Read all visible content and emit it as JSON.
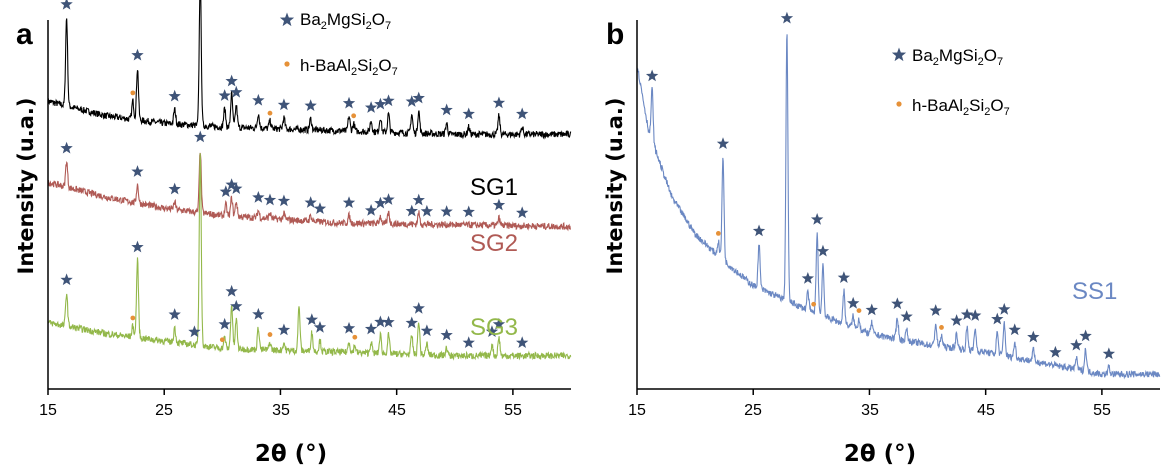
{
  "colors": {
    "star": "#3f5478",
    "dot": "#e69138",
    "axis": "#000000",
    "SG1": "#000000",
    "SG2": "#b05a55",
    "SG3": "#93b84a",
    "SS1": "#6b88c3"
  },
  "chart_data": [
    {
      "type": "line",
      "panel": "a",
      "xlabel": "2θ (°)",
      "ylabel": "Intensity (u.a.)",
      "xlim": [
        15,
        60
      ],
      "xticks": [
        15,
        25,
        35,
        45,
        55
      ],
      "legend": {
        "placement": "top-center",
        "entries": [
          {
            "marker": "star-icon",
            "label": "Ba₂MgSi₂O₇"
          },
          {
            "marker": "dot-icon",
            "label": "h-BaAl₂Si₂O₇"
          }
        ]
      },
      "series": [
        {
          "name": "SG1",
          "baseline": [
            [
              15,
              0.78
            ],
            [
              20,
              0.74
            ],
            [
              25,
              0.72
            ],
            [
              30,
              0.71
            ],
            [
              40,
              0.7
            ],
            [
              50,
              0.69
            ],
            [
              60,
              0.69
            ]
          ],
          "peaks": [
            {
              "x": 16.6,
              "h": 0.24
            },
            {
              "x": 22.3,
              "h": 0.05
            },
            {
              "x": 22.7,
              "h": 0.14
            },
            {
              "x": 25.9,
              "h": 0.04
            },
            {
              "x": 28.1,
              "h": 0.4
            },
            {
              "x": 30.2,
              "h": 0.05
            },
            {
              "x": 30.8,
              "h": 0.09
            },
            {
              "x": 31.2,
              "h": 0.06
            },
            {
              "x": 33.1,
              "h": 0.04
            },
            {
              "x": 34.1,
              "h": 0.02
            },
            {
              "x": 35.3,
              "h": 0.03
            },
            {
              "x": 37.6,
              "h": 0.03
            },
            {
              "x": 40.9,
              "h": 0.04
            },
            {
              "x": 41.3,
              "h": 0.02
            },
            {
              "x": 42.8,
              "h": 0.03
            },
            {
              "x": 43.6,
              "h": 0.04
            },
            {
              "x": 44.3,
              "h": 0.05
            },
            {
              "x": 46.3,
              "h": 0.05
            },
            {
              "x": 46.9,
              "h": 0.06
            },
            {
              "x": 49.3,
              "h": 0.03
            },
            {
              "x": 51.2,
              "h": 0.02
            },
            {
              "x": 53.8,
              "h": 0.05
            },
            {
              "x": 55.8,
              "h": 0.02
            }
          ],
          "stars": [
            16.6,
            22.7,
            25.9,
            28.1,
            30.2,
            30.8,
            31.2,
            33.1,
            35.3,
            37.6,
            40.9,
            42.8,
            43.6,
            44.3,
            46.3,
            46.9,
            49.3,
            51.2,
            53.8,
            55.8
          ],
          "dots": [
            22.3,
            34.1,
            41.3
          ]
        },
        {
          "name": "SG2",
          "baseline": [
            [
              15,
              0.56
            ],
            [
              20,
              0.52
            ],
            [
              25,
              0.49
            ],
            [
              30,
              0.47
            ],
            [
              40,
              0.45
            ],
            [
              50,
              0.445
            ],
            [
              60,
              0.44
            ]
          ],
          "peaks": [
            {
              "x": 16.6,
              "h": 0.07
            },
            {
              "x": 22.7,
              "h": 0.05
            },
            {
              "x": 25.9,
              "h": 0.02
            },
            {
              "x": 28.1,
              "h": 0.17
            },
            {
              "x": 30.3,
              "h": 0.03
            },
            {
              "x": 30.8,
              "h": 0.05
            },
            {
              "x": 31.2,
              "h": 0.04
            },
            {
              "x": 33.1,
              "h": 0.02
            },
            {
              "x": 34.1,
              "h": 0.015
            },
            {
              "x": 35.3,
              "h": 0.015
            },
            {
              "x": 37.6,
              "h": 0.015
            },
            {
              "x": 40.9,
              "h": 0.02
            },
            {
              "x": 43.6,
              "h": 0.02
            },
            {
              "x": 44.3,
              "h": 0.03
            },
            {
              "x": 46.9,
              "h": 0.03
            },
            {
              "x": 53.8,
              "h": 0.02
            }
          ],
          "stars": [
            16.6,
            22.7,
            25.9,
            28.1,
            30.3,
            30.8,
            31.2,
            33.1,
            34.1,
            35.3,
            37.6,
            38.4,
            40.9,
            42.8,
            43.6,
            44.3,
            46.3,
            46.9,
            47.6,
            49.3,
            51.2,
            53.8,
            55.8
          ],
          "dots": []
        },
        {
          "name": "SG3",
          "baseline": [
            [
              15,
              0.18
            ],
            [
              20,
              0.15
            ],
            [
              25,
              0.13
            ],
            [
              30,
              0.11
            ],
            [
              40,
              0.1
            ],
            [
              50,
              0.09
            ],
            [
              60,
              0.09
            ]
          ],
          "peaks": [
            {
              "x": 16.6,
              "h": 0.09
            },
            {
              "x": 22.3,
              "h": 0.03
            },
            {
              "x": 22.7,
              "h": 0.21
            },
            {
              "x": 25.9,
              "h": 0.04
            },
            {
              "x": 28.1,
              "h": 0.53
            },
            {
              "x": 30.2,
              "h": 0.03
            },
            {
              "x": 30.8,
              "h": 0.12
            },
            {
              "x": 31.2,
              "h": 0.08
            },
            {
              "x": 33.1,
              "h": 0.06
            },
            {
              "x": 34.1,
              "h": 0.02
            },
            {
              "x": 35.3,
              "h": 0.02
            },
            {
              "x": 36.6,
              "h": 0.12
            },
            {
              "x": 37.7,
              "h": 0.05
            },
            {
              "x": 38.4,
              "h": 0.03
            },
            {
              "x": 40.9,
              "h": 0.03
            },
            {
              "x": 41.4,
              "h": 0.02
            },
            {
              "x": 42.8,
              "h": 0.03
            },
            {
              "x": 43.6,
              "h": 0.05
            },
            {
              "x": 44.3,
              "h": 0.05
            },
            {
              "x": 46.3,
              "h": 0.05
            },
            {
              "x": 46.9,
              "h": 0.09
            },
            {
              "x": 47.6,
              "h": 0.03
            },
            {
              "x": 49.3,
              "h": 0.02
            },
            {
              "x": 53.2,
              "h": 0.03
            },
            {
              "x": 53.8,
              "h": 0.05
            }
          ],
          "stars": [
            16.6,
            22.7,
            25.9,
            27.6,
            30.2,
            30.8,
            31.2,
            33.1,
            35.3,
            37.7,
            38.4,
            40.9,
            42.8,
            43.6,
            44.3,
            46.3,
            46.9,
            47.6,
            49.3,
            51.2,
            53.2,
            53.8,
            55.8
          ],
          "dots": [
            22.3,
            30.0,
            34.1,
            41.4
          ]
        }
      ]
    },
    {
      "type": "line",
      "panel": "b",
      "xlabel": "2θ (°)",
      "ylabel": "Intensity (u.a.)",
      "xlim": [
        15,
        60
      ],
      "xticks": [
        15,
        25,
        35,
        45,
        55
      ],
      "legend": {
        "placement": "top-center",
        "entries": [
          {
            "marker": "star-icon",
            "label": "Ba₂MgSi₂O₇"
          },
          {
            "marker": "dot-icon",
            "label": "h-BaAl₂Si₂O₇"
          }
        ]
      },
      "series": [
        {
          "name": "SS1",
          "baseline": [
            [
              15,
              0.88
            ],
            [
              16,
              0.7
            ],
            [
              18,
              0.52
            ],
            [
              20,
              0.42
            ],
            [
              22,
              0.36
            ],
            [
              25,
              0.28
            ],
            [
              30,
              0.21
            ],
            [
              35,
              0.15
            ],
            [
              40,
              0.12
            ],
            [
              45,
              0.1
            ],
            [
              50,
              0.07
            ],
            [
              55,
              0.04
            ],
            [
              60,
              0.04
            ]
          ],
          "peaks": [
            {
              "x": 16.3,
              "h": 0.14
            },
            {
              "x": 22.0,
              "h": 0.04
            },
            {
              "x": 22.4,
              "h": 0.28
            },
            {
              "x": 25.5,
              "h": 0.12
            },
            {
              "x": 27.9,
              "h": 0.73
            },
            {
              "x": 29.7,
              "h": 0.05
            },
            {
              "x": 30.5,
              "h": 0.22
            },
            {
              "x": 31.0,
              "h": 0.14
            },
            {
              "x": 32.8,
              "h": 0.09
            },
            {
              "x": 33.6,
              "h": 0.03
            },
            {
              "x": 34.1,
              "h": 0.03
            },
            {
              "x": 35.2,
              "h": 0.03
            },
            {
              "x": 37.4,
              "h": 0.06
            },
            {
              "x": 38.2,
              "h": 0.03
            },
            {
              "x": 40.7,
              "h": 0.06
            },
            {
              "x": 41.2,
              "h": 0.03
            },
            {
              "x": 42.5,
              "h": 0.04
            },
            {
              "x": 43.4,
              "h": 0.06
            },
            {
              "x": 44.1,
              "h": 0.06
            },
            {
              "x": 46.0,
              "h": 0.06
            },
            {
              "x": 46.6,
              "h": 0.09
            },
            {
              "x": 47.5,
              "h": 0.04
            },
            {
              "x": 49.1,
              "h": 0.03
            },
            {
              "x": 52.8,
              "h": 0.03
            },
            {
              "x": 53.6,
              "h": 0.06
            },
            {
              "x": 55.6,
              "h": 0.02
            }
          ],
          "stars": [
            16.3,
            22.4,
            25.5,
            27.9,
            29.7,
            30.5,
            31.0,
            32.8,
            33.6,
            35.2,
            37.4,
            38.2,
            40.7,
            42.5,
            43.4,
            44.1,
            46.0,
            46.6,
            47.5,
            49.1,
            51.0,
            52.8,
            53.6,
            55.6
          ],
          "dots": [
            22.0,
            30.2,
            34.1,
            41.2
          ]
        }
      ]
    }
  ],
  "panels": [
    {
      "letter": "a",
      "xlabel": "2θ (°)",
      "ylabel": "Intensity (u.a.)",
      "xticks": [
        "15",
        "25",
        "35",
        "45",
        "55"
      ],
      "legend": [
        {
          "main": "Ba",
          "sub1": "2",
          "mid1": "MgSi",
          "sub2": "2",
          "mid2": "O",
          "sub3": "7"
        },
        {
          "main": "h-BaAl",
          "sub1": "2",
          "mid1": "Si",
          "sub2": "2",
          "mid2": "O",
          "sub3": "7"
        }
      ],
      "series_labels": [
        "SG1",
        "SG2",
        "SG3"
      ]
    },
    {
      "letter": "b",
      "xlabel": "2θ (°)",
      "ylabel": "Intensity (u.a.)",
      "xticks": [
        "15",
        "25",
        "35",
        "45",
        "55"
      ],
      "legend": [
        {
          "main": "Ba",
          "sub1": "2",
          "mid1": "MgSi",
          "sub2": "2",
          "mid2": "O",
          "sub3": "7"
        },
        {
          "main": "h-BaAl",
          "sub1": "2",
          "mid1": "Si",
          "sub2": "2",
          "mid2": "O",
          "sub3": "7"
        }
      ],
      "series_labels": [
        "SS1"
      ]
    }
  ]
}
